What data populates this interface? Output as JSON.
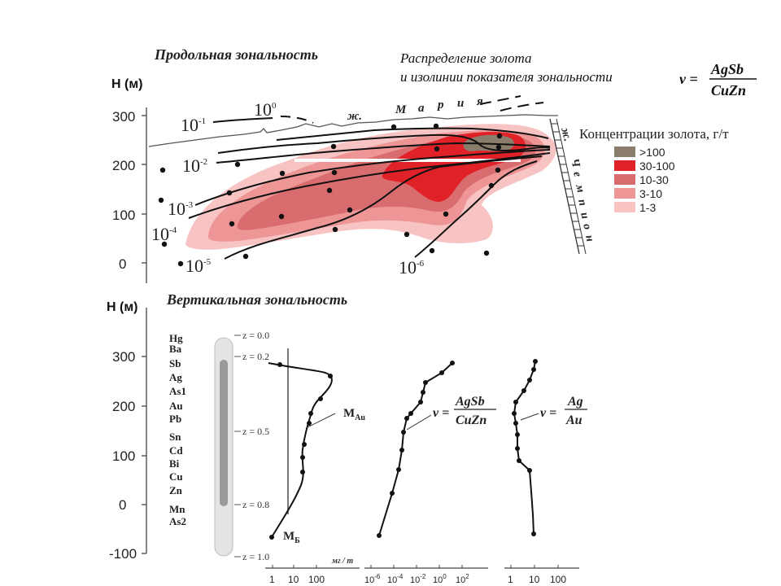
{
  "top_section": {
    "title": "Продольная   зональность",
    "ylabel": "H (м)",
    "yticks": [
      "300",
      "200",
      "100",
      "0"
    ],
    "subtitle_line1": "Распределение золота",
    "subtitle_line2": "и изолинии показателя  зональности",
    "formula_v": "v =",
    "formula_num": "AgSb",
    "formula_den": "CuZn",
    "isoline_labels": [
      {
        "base": "10",
        "exp": "0"
      },
      {
        "base": "10",
        "exp": "-1"
      },
      {
        "base": "10",
        "exp": "-2"
      },
      {
        "base": "10",
        "exp": "-3"
      },
      {
        "base": "10",
        "exp": "-4"
      },
      {
        "base": "10",
        "exp": "-5"
      },
      {
        "base": "10",
        "exp": "-6"
      }
    ],
    "vein_mariya_letters": [
      "ж.",
      "М",
      "а",
      "р",
      "и",
      "я"
    ],
    "vein_champion_letters": [
      "ж.",
      "Ч",
      "е",
      "м",
      "п",
      "и",
      "о",
      "н"
    ],
    "legend": {
      "title": "Концентрации золота, г/т",
      "items": [
        {
          "label": ">100",
          "color": "#8b7d6b"
        },
        {
          "label": "30-100",
          "color": "#e02128"
        },
        {
          "label": "10-30",
          "color": "#d86c6e"
        },
        {
          "label": "3-10",
          "color": "#ee9596"
        },
        {
          "label": "1-3",
          "color": "#f7c3c3"
        }
      ]
    }
  },
  "bottom_section": {
    "title": "Вертикальная   зональность",
    "ylabel": "H (м)",
    "yticks": [
      "300",
      "200",
      "100",
      "0",
      "-100"
    ],
    "elements": [
      "Hg",
      "Ba",
      "Sb",
      "Ag",
      "As1",
      "Au",
      "Pb",
      "Sn",
      "Cd",
      "Bi",
      "Cu",
      "Zn",
      "Mn",
      "As2"
    ],
    "z_labels": [
      "z =  0.0",
      "z = 0.2",
      "z =  0.5",
      "z =  0.8",
      "z = 1.0"
    ],
    "curve_labels": {
      "m_au": "M",
      "m_au_sub": "Au",
      "m_b": "M",
      "m_b_sub": "Б"
    },
    "units": "мг / т",
    "axis1_ticks": [
      "1",
      "10",
      "100"
    ],
    "axis2_tick_base": "10",
    "axis2_tick_exps": [
      "-6",
      "-4",
      "-2",
      "0",
      "2"
    ],
    "axis3_ticks": [
      "1",
      "10",
      "100"
    ],
    "formula2_v": "v =",
    "formula2_num": "AgSb",
    "formula2_den": "CuZn",
    "formula3_v": "v =",
    "formula3_num": "Ag",
    "formula3_den": "Au"
  }
}
